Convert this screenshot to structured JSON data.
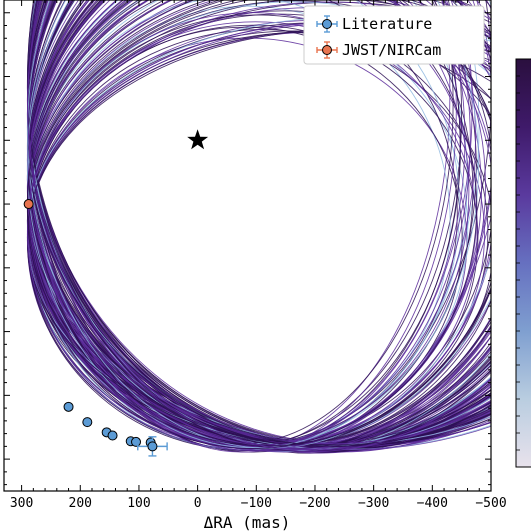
{
  "chart_data": {
    "type": "scatter",
    "xlabel": "ΔRA (mas)",
    "ylabel": "",
    "xlim": [
      330,
      -500
    ],
    "ylim": [
      -450,
      320
    ],
    "x_ticks": [
      300,
      200,
      100,
      0,
      -100,
      -200,
      -300,
      -400,
      -500
    ],
    "x_tick_labels": [
      "300",
      "200",
      "100",
      "0",
      "−100",
      "−200",
      "−300",
      "−400",
      "−500"
    ],
    "grid": false,
    "legend_position": "top-right",
    "star": {
      "x": 0,
      "y": 100
    },
    "orbit_fan": {
      "description_count": 180,
      "color_low": "#2d0f55",
      "color_mid": "#5a2a9a",
      "color_high": "#8fb8e0"
    },
    "series": [
      {
        "name": "Literature",
        "color": "#5b9bd5",
        "points": [
          {
            "x": 220,
            "y": -318
          },
          {
            "x": 188,
            "y": -342
          },
          {
            "x": 155,
            "y": -358
          },
          {
            "x": 145,
            "y": -363
          },
          {
            "x": 114,
            "y": -372
          },
          {
            "x": 105,
            "y": -373
          },
          {
            "x": 80,
            "y": -374
          },
          {
            "x": 77,
            "y": -380,
            "xerr": 25,
            "yerr": 15
          }
        ]
      },
      {
        "name": "JWST/NIRCam",
        "color": "#e8744f",
        "points": [
          {
            "x": 288,
            "y": 0
          }
        ]
      }
    ],
    "colorbar": {
      "colors": [
        "#e8e2ec",
        "#b9cde0",
        "#7f9fd0",
        "#6670c0",
        "#5a3a9e",
        "#3f1a6a",
        "#2a0f3e"
      ]
    }
  }
}
